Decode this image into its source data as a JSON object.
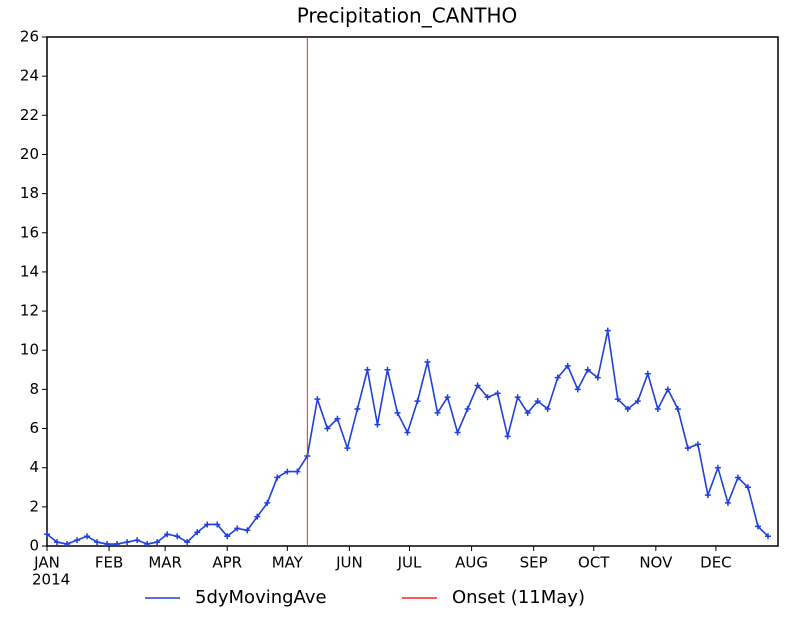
{
  "chart_data": {
    "type": "line",
    "title": "Precipitation_CANTHO",
    "x": [
      1,
      6,
      11,
      16,
      21,
      26,
      31,
      36,
      41,
      46,
      51,
      56,
      61,
      66,
      71,
      76,
      81,
      86,
      91,
      96,
      101,
      106,
      111,
      116,
      121,
      126,
      131,
      136,
      141,
      146,
      151,
      156,
      161,
      166,
      171,
      176,
      181,
      186,
      191,
      196,
      201,
      206,
      211,
      216,
      221,
      226,
      231,
      236,
      241,
      246,
      251,
      256,
      261,
      266,
      271,
      276,
      281,
      286,
      291,
      296,
      301,
      306,
      311,
      316,
      321,
      326,
      331,
      336,
      341,
      346,
      351,
      356,
      361
    ],
    "series": [
      {
        "name": "5dyMovingAve",
        "color": "#1f3fe0",
        "values": [
          0.6,
          0.2,
          0.1,
          0.3,
          0.5,
          0.2,
          0.1,
          0.1,
          0.2,
          0.3,
          0.1,
          0.2,
          0.6,
          0.5,
          0.2,
          0.7,
          1.1,
          1.1,
          0.5,
          0.9,
          0.8,
          1.5,
          2.2,
          3.5,
          3.8,
          3.8,
          4.6,
          7.5,
          6.0,
          6.5,
          5.0,
          7.0,
          9.0,
          6.2,
          9.0,
          6.8,
          5.8,
          7.4,
          9.4,
          6.8,
          7.6,
          5.8,
          7.0,
          8.2,
          7.6,
          7.8,
          5.6,
          7.6,
          6.8,
          7.4,
          7.0,
          8.6,
          9.2,
          8.0,
          9.0,
          8.6,
          11.0,
          7.5,
          7.0,
          7.4,
          8.8,
          7.0,
          8.0,
          7.0,
          5.0,
          5.2,
          2.6,
          4.0,
          2.2,
          3.5,
          3.0,
          1.0,
          0.5
        ]
      }
    ],
    "onset": {
      "x": 131,
      "label": "Onset (11May)",
      "color": "#ff2020"
    },
    "xlim": [
      1,
      366
    ],
    "xticks": [
      {
        "value": 1,
        "label": "JAN"
      },
      {
        "value": 32,
        "label": "FEB"
      },
      {
        "value": 60,
        "label": "MAR"
      },
      {
        "value": 91,
        "label": "APR"
      },
      {
        "value": 121,
        "label": "MAY"
      },
      {
        "value": 152,
        "label": "JUN"
      },
      {
        "value": 182,
        "label": "JUL"
      },
      {
        "value": 213,
        "label": "AUG"
      },
      {
        "value": 244,
        "label": "SEP"
      },
      {
        "value": 274,
        "label": "OCT"
      },
      {
        "value": 305,
        "label": "NOV"
      },
      {
        "value": 335,
        "label": "DEC"
      }
    ],
    "year_label": "2014",
    "ylim": [
      0,
      26
    ],
    "yticks": [
      0,
      2,
      4,
      6,
      8,
      10,
      12,
      14,
      16,
      18,
      20,
      22,
      24,
      26
    ]
  }
}
